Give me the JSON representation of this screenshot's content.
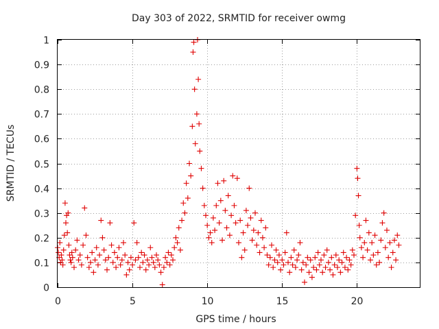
{
  "chart_data": {
    "type": "scatter",
    "title": "Day 303 of 2022, SRMTID for receiver owmg",
    "xlabel": "GPS time / hours",
    "ylabel": "SRMTID / TECUs",
    "xlim": [
      0,
      24.2
    ],
    "ylim": [
      0,
      1
    ],
    "xticks": [
      0,
      5,
      10,
      15,
      20
    ],
    "xtick_labels": [
      "0",
      "5",
      "10",
      "15",
      "20"
    ],
    "yticks": [
      0,
      0.1,
      0.2,
      0.3,
      0.4,
      0.5,
      0.6,
      0.7,
      0.8,
      0.9,
      1
    ],
    "ytick_labels": [
      "0",
      "0.1",
      "0.2",
      "0.3",
      "0.4",
      "0.5",
      "0.6",
      "0.7",
      "0.8",
      "0.9",
      "1"
    ],
    "grid": true,
    "marker": "+",
    "marker_color": "#e00000",
    "series": [
      {
        "name": "SRMTID",
        "points": [
          [
            0.0,
            0.16
          ],
          [
            0.05,
            0.14
          ],
          [
            0.1,
            0.12
          ],
          [
            0.15,
            0.18
          ],
          [
            0.2,
            0.1
          ],
          [
            0.25,
            0.13
          ],
          [
            0.3,
            0.11
          ],
          [
            0.35,
            0.09
          ],
          [
            0.4,
            0.15
          ],
          [
            0.45,
            0.21
          ],
          [
            0.5,
            0.34
          ],
          [
            0.55,
            0.26
          ],
          [
            0.6,
            0.29
          ],
          [
            0.65,
            0.22
          ],
          [
            0.7,
            0.3
          ],
          [
            0.75,
            0.17
          ],
          [
            0.8,
            0.13
          ],
          [
            0.85,
            0.11
          ],
          [
            0.9,
            0.1
          ],
          [
            0.95,
            0.14
          ],
          [
            1.0,
            0.12
          ],
          [
            1.1,
            0.08
          ],
          [
            1.2,
            0.15
          ],
          [
            1.3,
            0.19
          ],
          [
            1.4,
            0.11
          ],
          [
            1.5,
            0.13
          ],
          [
            1.6,
            0.09
          ],
          [
            1.7,
            0.17
          ],
          [
            1.8,
            0.32
          ],
          [
            1.9,
            0.21
          ],
          [
            2.0,
            0.12
          ],
          [
            2.1,
            0.08
          ],
          [
            2.2,
            0.1
          ],
          [
            2.3,
            0.14
          ],
          [
            2.4,
            0.06
          ],
          [
            2.5,
            0.11
          ],
          [
            2.6,
            0.16
          ],
          [
            2.7,
            0.09
          ],
          [
            2.8,
            0.13
          ],
          [
            2.9,
            0.27
          ],
          [
            3.0,
            0.2
          ],
          [
            3.1,
            0.15
          ],
          [
            3.2,
            0.11
          ],
          [
            3.3,
            0.07
          ],
          [
            3.4,
            0.12
          ],
          [
            3.5,
            0.26
          ],
          [
            3.6,
            0.17
          ],
          [
            3.7,
            0.1
          ],
          [
            3.8,
            0.14
          ],
          [
            3.9,
            0.08
          ],
          [
            4.0,
            0.12
          ],
          [
            4.1,
            0.16
          ],
          [
            4.2,
            0.09
          ],
          [
            4.3,
            0.11
          ],
          [
            4.4,
            0.18
          ],
          [
            4.5,
            0.13
          ],
          [
            4.6,
            0.05
          ],
          [
            4.7,
            0.1
          ],
          [
            4.8,
            0.07
          ],
          [
            4.9,
            0.12
          ],
          [
            5.0,
            0.09
          ],
          [
            5.1,
            0.26
          ],
          [
            5.2,
            0.11
          ],
          [
            5.3,
            0.18
          ],
          [
            5.4,
            0.12
          ],
          [
            5.5,
            0.08
          ],
          [
            5.6,
            0.14
          ],
          [
            5.7,
            0.1
          ],
          [
            5.8,
            0.13
          ],
          [
            5.9,
            0.07
          ],
          [
            6.0,
            0.11
          ],
          [
            6.1,
            0.09
          ],
          [
            6.2,
            0.16
          ],
          [
            6.3,
            0.12
          ],
          [
            6.4,
            0.1
          ],
          [
            6.5,
            0.08
          ],
          [
            6.6,
            0.13
          ],
          [
            6.7,
            0.11
          ],
          [
            6.8,
            0.09
          ],
          [
            6.9,
            0.06
          ],
          [
            7.0,
            0.01
          ],
          [
            7.1,
            0.08
          ],
          [
            7.2,
            0.12
          ],
          [
            7.3,
            0.1
          ],
          [
            7.4,
            0.14
          ],
          [
            7.5,
            0.09
          ],
          [
            7.6,
            0.13
          ],
          [
            7.7,
            0.11
          ],
          [
            7.8,
            0.16
          ],
          [
            7.9,
            0.2
          ],
          [
            8.0,
            0.18
          ],
          [
            8.1,
            0.24
          ],
          [
            8.2,
            0.15
          ],
          [
            8.3,
            0.27
          ],
          [
            8.4,
            0.34
          ],
          [
            8.5,
            0.3
          ],
          [
            8.6,
            0.42
          ],
          [
            8.7,
            0.36
          ],
          [
            8.8,
            0.5
          ],
          [
            8.9,
            0.45
          ],
          [
            9.0,
            0.65
          ],
          [
            9.05,
            0.95
          ],
          [
            9.1,
            0.99
          ],
          [
            9.15,
            0.8
          ],
          [
            9.2,
            0.58
          ],
          [
            9.3,
            0.7
          ],
          [
            9.35,
            1.0
          ],
          [
            9.4,
            0.84
          ],
          [
            9.45,
            0.66
          ],
          [
            9.5,
            0.55
          ],
          [
            9.6,
            0.48
          ],
          [
            9.7,
            0.4
          ],
          [
            9.8,
            0.33
          ],
          [
            9.9,
            0.29
          ],
          [
            10.0,
            0.25
          ],
          [
            10.1,
            0.2
          ],
          [
            10.2,
            0.22
          ],
          [
            10.3,
            0.18
          ],
          [
            10.4,
            0.28
          ],
          [
            10.5,
            0.23
          ],
          [
            10.6,
            0.33
          ],
          [
            10.7,
            0.42
          ],
          [
            10.8,
            0.26
          ],
          [
            10.9,
            0.35
          ],
          [
            11.0,
            0.19
          ],
          [
            11.1,
            0.43
          ],
          [
            11.2,
            0.31
          ],
          [
            11.3,
            0.24
          ],
          [
            11.4,
            0.37
          ],
          [
            11.5,
            0.21
          ],
          [
            11.6,
            0.29
          ],
          [
            11.7,
            0.45
          ],
          [
            11.8,
            0.33
          ],
          [
            11.9,
            0.26
          ],
          [
            12.0,
            0.44
          ],
          [
            12.1,
            0.18
          ],
          [
            12.2,
            0.27
          ],
          [
            12.3,
            0.12
          ],
          [
            12.4,
            0.22
          ],
          [
            12.5,
            0.15
          ],
          [
            12.6,
            0.31
          ],
          [
            12.7,
            0.25
          ],
          [
            12.8,
            0.4
          ],
          [
            12.9,
            0.28
          ],
          [
            13.0,
            0.19
          ],
          [
            13.1,
            0.23
          ],
          [
            13.2,
            0.3
          ],
          [
            13.3,
            0.17
          ],
          [
            13.4,
            0.22
          ],
          [
            13.5,
            0.14
          ],
          [
            13.6,
            0.27
          ],
          [
            13.7,
            0.2
          ],
          [
            13.8,
            0.16
          ],
          [
            13.9,
            0.24
          ],
          [
            14.0,
            0.13
          ],
          [
            14.1,
            0.09
          ],
          [
            14.2,
            0.12
          ],
          [
            14.3,
            0.17
          ],
          [
            14.4,
            0.08
          ],
          [
            14.5,
            0.11
          ],
          [
            14.6,
            0.15
          ],
          [
            14.7,
            0.1
          ],
          [
            14.8,
            0.13
          ],
          [
            14.9,
            0.07
          ],
          [
            15.0,
            0.11
          ],
          [
            15.1,
            0.09
          ],
          [
            15.2,
            0.14
          ],
          [
            15.3,
            0.22
          ],
          [
            15.4,
            0.1
          ],
          [
            15.5,
            0.06
          ],
          [
            15.6,
            0.12
          ],
          [
            15.7,
            0.09
          ],
          [
            15.8,
            0.15
          ],
          [
            15.9,
            0.08
          ],
          [
            16.0,
            0.11
          ],
          [
            16.1,
            0.13
          ],
          [
            16.2,
            0.18
          ],
          [
            16.3,
            0.07
          ],
          [
            16.4,
            0.1
          ],
          [
            16.5,
            0.02
          ],
          [
            16.6,
            0.09
          ],
          [
            16.7,
            0.12
          ],
          [
            16.8,
            0.06
          ],
          [
            16.9,
            0.11
          ],
          [
            17.0,
            0.04
          ],
          [
            17.1,
            0.08
          ],
          [
            17.2,
            0.12
          ],
          [
            17.3,
            0.07
          ],
          [
            17.4,
            0.14
          ],
          [
            17.5,
            0.09
          ],
          [
            17.6,
            0.11
          ],
          [
            17.7,
            0.06
          ],
          [
            17.8,
            0.13
          ],
          [
            17.9,
            0.08
          ],
          [
            18.0,
            0.15
          ],
          [
            18.1,
            0.1
          ],
          [
            18.2,
            0.07
          ],
          [
            18.3,
            0.12
          ],
          [
            18.4,
            0.05
          ],
          [
            18.5,
            0.09
          ],
          [
            18.6,
            0.13
          ],
          [
            18.7,
            0.08
          ],
          [
            18.8,
            0.11
          ],
          [
            18.9,
            0.06
          ],
          [
            19.0,
            0.1
          ],
          [
            19.1,
            0.14
          ],
          [
            19.2,
            0.08
          ],
          [
            19.3,
            0.12
          ],
          [
            19.4,
            0.07
          ],
          [
            19.5,
            0.11
          ],
          [
            19.6,
            0.09
          ],
          [
            19.7,
            0.15
          ],
          [
            19.8,
            0.13
          ],
          [
            19.9,
            0.29
          ],
          [
            20.0,
            0.48
          ],
          [
            20.05,
            0.44
          ],
          [
            20.1,
            0.37
          ],
          [
            20.15,
            0.25
          ],
          [
            20.2,
            0.2
          ],
          [
            20.3,
            0.16
          ],
          [
            20.4,
            0.12
          ],
          [
            20.5,
            0.18
          ],
          [
            20.6,
            0.27
          ],
          [
            20.7,
            0.15
          ],
          [
            20.8,
            0.22
          ],
          [
            20.9,
            0.11
          ],
          [
            21.0,
            0.18
          ],
          [
            21.1,
            0.13
          ],
          [
            21.2,
            0.21
          ],
          [
            21.3,
            0.09
          ],
          [
            21.4,
            0.14
          ],
          [
            21.5,
            0.1
          ],
          [
            21.6,
            0.19
          ],
          [
            21.7,
            0.26
          ],
          [
            21.8,
            0.3
          ],
          [
            21.9,
            0.16
          ],
          [
            22.0,
            0.23
          ],
          [
            22.1,
            0.12
          ],
          [
            22.2,
            0.18
          ],
          [
            22.3,
            0.08
          ],
          [
            22.4,
            0.14
          ],
          [
            22.5,
            0.19
          ],
          [
            22.6,
            0.11
          ],
          [
            22.7,
            0.21
          ],
          [
            22.8,
            0.17
          ]
        ]
      }
    ]
  }
}
